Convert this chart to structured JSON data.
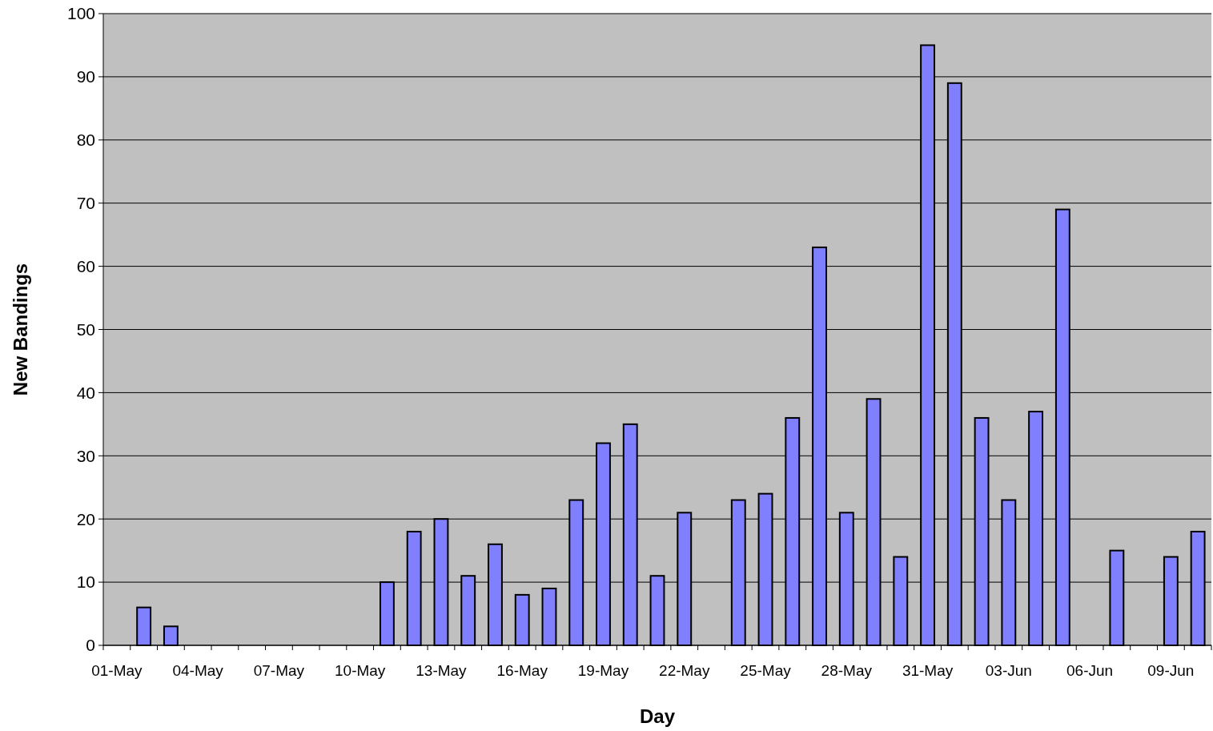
{
  "chart_data": {
    "type": "bar",
    "xlabel": "Day",
    "ylabel": "New Bandings",
    "categories": [
      "01-May",
      null,
      null,
      "04-May",
      null,
      null,
      "07-May",
      null,
      null,
      "10-May",
      null,
      null,
      "13-May",
      null,
      null,
      "16-May",
      null,
      null,
      "19-May",
      null,
      null,
      "22-May",
      null,
      null,
      "25-May",
      null,
      null,
      "28-May",
      null,
      null,
      "31-May",
      null,
      null,
      "03-Jun",
      null,
      null,
      "06-Jun",
      null,
      null,
      "09-Jun",
      null
    ],
    "values": [
      null,
      6,
      3,
      null,
      null,
      null,
      null,
      null,
      null,
      null,
      10,
      18,
      20,
      11,
      16,
      8,
      9,
      23,
      32,
      35,
      11,
      21,
      null,
      23,
      24,
      36,
      63,
      21,
      39,
      14,
      95,
      89,
      36,
      23,
      37,
      69,
      null,
      15,
      null,
      14,
      18
    ],
    "color": "#8080ff",
    "ylim": [
      0,
      100
    ],
    "yticks": [
      0,
      10,
      20,
      30,
      40,
      50,
      60,
      70,
      80,
      90,
      100
    ],
    "grid": "y"
  }
}
